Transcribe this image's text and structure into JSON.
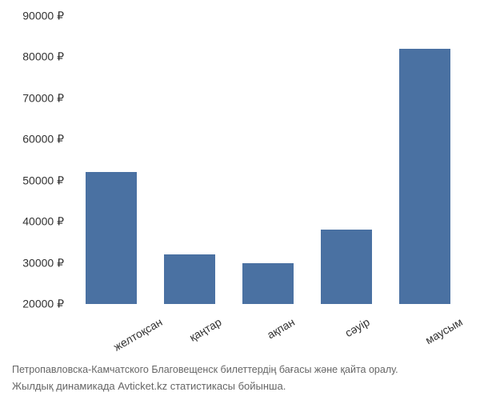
{
  "chart": {
    "type": "bar",
    "categories": [
      "желтоқсан",
      "қаңтар",
      "ақпан",
      "сәуір",
      "маусым"
    ],
    "values": [
      52000,
      32000,
      30000,
      38000,
      82000
    ],
    "bar_color": "#4a71a2",
    "ylim": [
      20000,
      90000
    ],
    "ytick_step": 10000,
    "ytick_labels": [
      "20000 ₽",
      "30000 ₽",
      "40000 ₽",
      "50000 ₽",
      "60000 ₽",
      "70000 ₽",
      "80000 ₽",
      "90000 ₽"
    ],
    "background_color": "#ffffff",
    "bar_width_ratio": 0.65,
    "label_fontsize": 14,
    "tick_fontsize": 14,
    "x_label_rotation": -30
  },
  "caption": {
    "line1": "Петропавловска-Камчатского Благовещенск билеттердің бағасы және қайта оралу.",
    "line2": "Жылдық динамикада Avticket.kz статистикасы бойынша."
  }
}
